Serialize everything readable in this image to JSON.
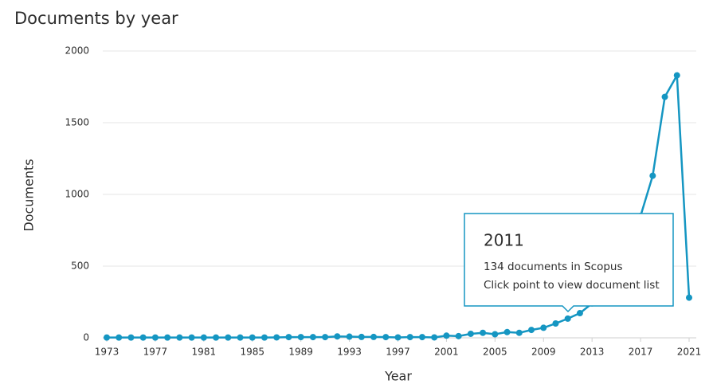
{
  "chart_data": {
    "type": "line",
    "title": "Documents by year",
    "xlabel": "Year",
    "ylabel": "Documents",
    "x": [
      1973,
      1974,
      1975,
      1976,
      1977,
      1978,
      1979,
      1980,
      1981,
      1982,
      1983,
      1984,
      1985,
      1986,
      1987,
      1988,
      1989,
      1990,
      1991,
      1992,
      1993,
      1994,
      1995,
      1996,
      1997,
      1998,
      1999,
      2000,
      2001,
      2002,
      2003,
      2004,
      2005,
      2006,
      2007,
      2008,
      2009,
      2010,
      2011,
      2012,
      2013,
      2014,
      2015,
      2016,
      2017,
      2018,
      2019,
      2020,
      2021
    ],
    "series": [
      {
        "name": "Documents",
        "color": "#1596c2",
        "values": [
          2,
          2,
          2,
          2,
          2,
          2,
          2,
          2,
          2,
          2,
          2,
          2,
          2,
          2,
          3,
          5,
          5,
          5,
          5,
          10,
          8,
          6,
          6,
          5,
          3,
          5,
          5,
          3,
          15,
          12,
          28,
          35,
          25,
          40,
          35,
          55,
          70,
          100,
          134,
          172,
          240,
          330,
          450,
          620,
          850,
          1130,
          1680,
          1830,
          280
        ]
      }
    ],
    "xlim": [
      1973,
      2021
    ],
    "xticks": [
      1973,
      1977,
      1981,
      1985,
      1989,
      1993,
      1997,
      2001,
      2005,
      2009,
      2013,
      2017,
      2021
    ],
    "ylim": [
      0,
      2000
    ],
    "yticks": [
      0,
      500,
      1000,
      1500,
      2000
    ],
    "grid": true,
    "tooltip": {
      "title": "2011",
      "line1": "134 documents in Scopus",
      "line2": "Click point to view document list"
    }
  }
}
